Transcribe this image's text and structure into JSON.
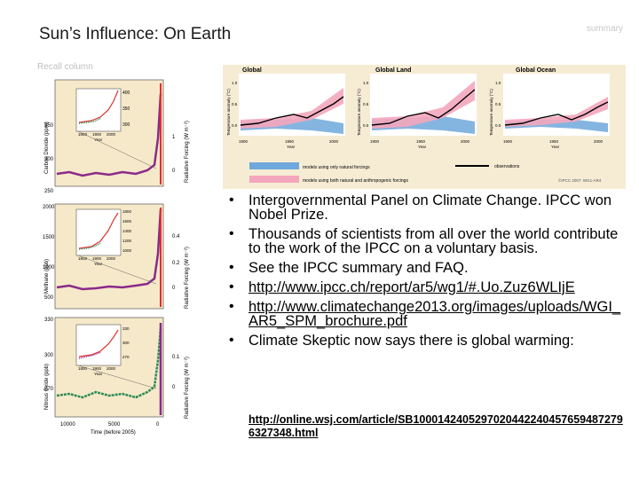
{
  "slide": {
    "title": "Sun’s Influence: On Earth",
    "corner_note": "summary",
    "recall_note": "Recall column"
  },
  "colors": {
    "natural_band": "#6fa8dc",
    "anthropogenic_band": "#f4a6bd",
    "observations_line": "#000000",
    "panel_bg": "#f6e9c9",
    "inset_red": "#e03030",
    "inset_green": "#2e8b57",
    "series_purple": "#8a2a8a"
  },
  "left_figure": {
    "panels": [
      {
        "ylabel": "Carbon Dioxide (ppm)",
        "rlabel": "Radiative Forcing (W m⁻²)",
        "yticks": [
          "350",
          "300",
          "250"
        ],
        "rticks": [
          "1",
          "0"
        ],
        "inset_yticks": [
          "400",
          "350",
          "300"
        ],
        "inset_xticks": [
          "1800",
          "1900",
          "2000"
        ],
        "inset_xlabel": "Year"
      },
      {
        "ylabel": "Methane (ppb)",
        "rlabel": "Radiative Forcing (W m⁻²)",
        "yticks": [
          "2000",
          "1500",
          "1000",
          "500"
        ],
        "rticks": [
          "0.4",
          "0.2",
          "0"
        ],
        "inset_yticks": [
          "1800",
          "1600",
          "1400",
          "1200",
          "1000"
        ],
        "inset_xticks": [
          "1800",
          "1900",
          "2000"
        ],
        "inset_xlabel": "Year"
      },
      {
        "ylabel": "Nitrous Oxide (ppb)",
        "rlabel": "Radiative Forcing (W m⁻²)",
        "yticks": [
          "330",
          "300",
          "270"
        ],
        "rticks": [
          "0.1",
          "0"
        ],
        "inset_yticks": [
          "330",
          "300",
          "270"
        ],
        "inset_xticks": [
          "1800",
          "1900",
          "2000"
        ],
        "inset_xlabel": "Year"
      }
    ],
    "xticks": [
      "10000",
      "5000",
      "0"
    ],
    "xlabel": "Time (before 2005)"
  },
  "top_figure": {
    "panels": [
      {
        "title": "Global",
        "ylabel": "Temperature anomaly (°C)",
        "yticks": [
          "1.0",
          "0.5",
          "0.0"
        ],
        "xticks": [
          "1900",
          "1950",
          "2000"
        ],
        "xlabel": "Year"
      },
      {
        "title": "Global Land",
        "ylabel": "Temperature anomaly (°C)",
        "yticks": [
          "1.0",
          "0.5",
          "0.0"
        ],
        "xticks": [
          "1900",
          "1950",
          "2000"
        ],
        "xlabel": "Year"
      },
      {
        "title": "Global Ocean",
        "ylabel": "Temperature anomaly (°C)",
        "yticks": [
          "1.0",
          "0.5",
          "0.0"
        ],
        "xticks": [
          "1900",
          "1950",
          "2000"
        ],
        "xlabel": "Year"
      }
    ],
    "legend": {
      "natural": "models using only natural forcings",
      "anthropogenic": "models using both natural and anthropogenic forcings",
      "observations": "observations"
    },
    "credit": "©IPCC 2007: WG1-AR4"
  },
  "bullets": [
    {
      "text": "Intergovernmental Panel on Climate Change. IPCC won Nobel Prize."
    },
    {
      "text": "Thousands of scientists from all over the world contribute to the work of the IPCC on a voluntary basis."
    },
    {
      "text": "See the IPCC summary and FAQ."
    },
    {
      "text": "http://www.ipcc.ch/report/ar5/wg1/#.Uo.Zuz6WLIjE"
    },
    {
      "text": "http://www.climatechange2013.org/images/uploads/WGI_AR5_SPM_brochure.pdf"
    },
    {
      "text": "Climate Skeptic now says there is global warming:"
    }
  ],
  "sub_link": "http://online.wsj.com/article/SB10001424052970204422404576594872796327348.html"
}
